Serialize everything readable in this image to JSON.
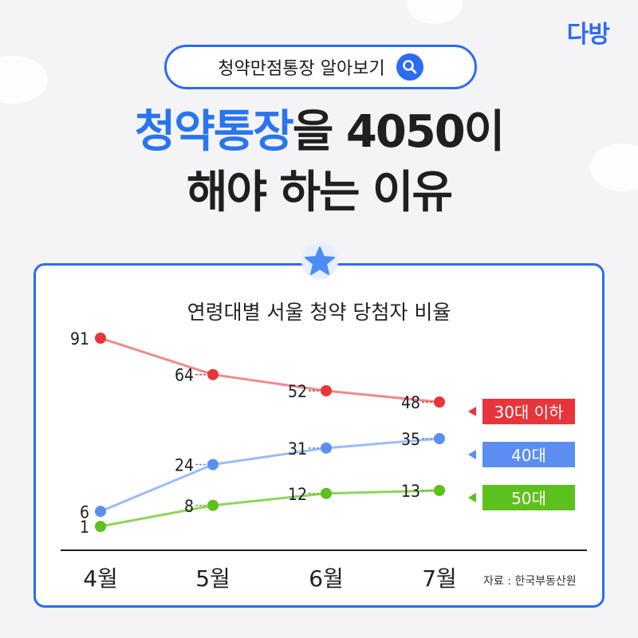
{
  "logo_text": "다방",
  "search": {
    "label": "청약만점통장 알아보기",
    "icon": "search-icon"
  },
  "headline": {
    "line1_accent": "청약통장",
    "line1_rest": "을 4050이",
    "line2": "해야 하는 이유"
  },
  "colors": {
    "brand": "#2d6cf0",
    "series_30": "#e8353b",
    "series_40": "#5b8ef0",
    "series_50": "#5cc11d"
  },
  "chart_data": {
    "type": "line",
    "title": "연령대별 서울 청약 당첨자 비율",
    "categories": [
      "4월",
      "5월",
      "6월",
      "7월"
    ],
    "series": [
      {
        "name": "30대 이하",
        "values": [
          91,
          64,
          52,
          48
        ],
        "color": "#e8353b",
        "line": "#f08a8c"
      },
      {
        "name": "40대",
        "values": [
          6,
          24,
          31,
          35
        ],
        "color": "#5b8ef0",
        "line": "#9bbcf6"
      },
      {
        "name": "50대",
        "values": [
          1,
          8,
          12,
          13
        ],
        "color": "#5cc11d",
        "line": "#8fd45f"
      }
    ],
    "source": "자료 : 한국부동산원",
    "legend_position": "right"
  }
}
